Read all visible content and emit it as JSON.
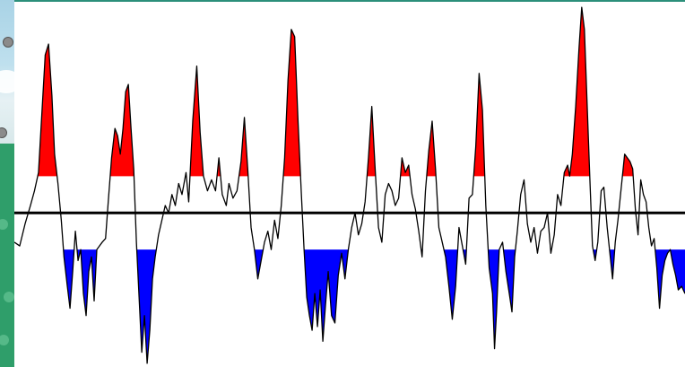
{
  "chart_data": {
    "type": "area",
    "title": "",
    "xlabel": "",
    "ylabel": "",
    "baseline": 0,
    "upper_threshold": 1.0,
    "lower_threshold": -1.0,
    "ylim": [
      -4.2,
      5.8
    ],
    "xlim": [
      0,
      100
    ],
    "grid": false,
    "legend": "none",
    "colors": {
      "line": "#000000",
      "above_threshold": "#ff0000",
      "below_threshold": "#0000ff",
      "zero_line": "#000000"
    },
    "series": [
      {
        "points": [
          [
            0,
            -0.8
          ],
          [
            0.8,
            -0.9
          ],
          [
            1.6,
            -0.3
          ],
          [
            2.4,
            0.2
          ],
          [
            3.0,
            0.6
          ],
          [
            3.6,
            1.1
          ],
          [
            4.1,
            2.7
          ],
          [
            4.6,
            4.3
          ],
          [
            5.1,
            4.6
          ],
          [
            5.6,
            3.2
          ],
          [
            6.0,
            1.6
          ],
          [
            6.5,
            0.8
          ],
          [
            7.0,
            -0.2
          ],
          [
            7.4,
            -1.2
          ],
          [
            7.9,
            -2.0
          ],
          [
            8.3,
            -2.6
          ],
          [
            8.7,
            -1.6
          ],
          [
            9.1,
            -0.5
          ],
          [
            9.5,
            -1.3
          ],
          [
            9.9,
            -1.0
          ],
          [
            10.3,
            -2.2
          ],
          [
            10.7,
            -2.8
          ],
          [
            11.1,
            -1.6
          ],
          [
            11.5,
            -1.2
          ],
          [
            11.9,
            -2.4
          ],
          [
            12.3,
            -1.0
          ],
          [
            12.7,
            -0.9
          ],
          [
            13.1,
            -0.8
          ],
          [
            13.6,
            -0.7
          ],
          [
            14.0,
            0.3
          ],
          [
            14.5,
            1.5
          ],
          [
            15.0,
            2.3
          ],
          [
            15.4,
            2.1
          ],
          [
            15.8,
            1.6
          ],
          [
            16.2,
            2.3
          ],
          [
            16.6,
            3.3
          ],
          [
            17.0,
            3.5
          ],
          [
            17.4,
            2.3
          ],
          [
            17.8,
            1.2
          ],
          [
            18.2,
            -0.8
          ],
          [
            18.6,
            -2.3
          ],
          [
            19.0,
            -3.8
          ],
          [
            19.4,
            -2.8
          ],
          [
            19.8,
            -4.1
          ],
          [
            20.2,
            -3.2
          ],
          [
            20.6,
            -1.8
          ],
          [
            21.0,
            -1.2
          ],
          [
            21.5,
            -0.6
          ],
          [
            22.0,
            -0.2
          ],
          [
            22.5,
            0.2
          ],
          [
            23.0,
            0.0
          ],
          [
            23.5,
            0.5
          ],
          [
            24.0,
            0.2
          ],
          [
            24.5,
            0.8
          ],
          [
            25.0,
            0.5
          ],
          [
            25.6,
            1.1
          ],
          [
            26.0,
            0.3
          ],
          [
            26.6,
            2.5
          ],
          [
            27.2,
            4.0
          ],
          [
            27.7,
            2.2
          ],
          [
            28.2,
            1.0
          ],
          [
            28.8,
            0.6
          ],
          [
            29.4,
            0.9
          ],
          [
            30.0,
            0.6
          ],
          [
            30.5,
            1.5
          ],
          [
            31.0,
            0.5
          ],
          [
            31.6,
            0.2
          ],
          [
            32.0,
            0.8
          ],
          [
            32.6,
            0.4
          ],
          [
            33.2,
            0.6
          ],
          [
            33.8,
            1.4
          ],
          [
            34.3,
            2.6
          ],
          [
            34.8,
            1.2
          ],
          [
            35.3,
            -0.4
          ],
          [
            35.8,
            -1.0
          ],
          [
            36.3,
            -1.8
          ],
          [
            36.8,
            -1.3
          ],
          [
            37.3,
            -0.8
          ],
          [
            37.8,
            -0.5
          ],
          [
            38.3,
            -1.0
          ],
          [
            38.8,
            -0.2
          ],
          [
            39.3,
            -0.7
          ],
          [
            39.8,
            0.2
          ],
          [
            40.3,
            1.5
          ],
          [
            40.8,
            3.6
          ],
          [
            41.3,
            5.0
          ],
          [
            41.8,
            4.8
          ],
          [
            42.3,
            2.5
          ],
          [
            42.8,
            0.5
          ],
          [
            43.2,
            -1.0
          ],
          [
            43.6,
            -2.3
          ],
          [
            44.0,
            -2.8
          ],
          [
            44.4,
            -3.2
          ],
          [
            44.8,
            -2.2
          ],
          [
            45.2,
            -3.1
          ],
          [
            45.6,
            -2.1
          ],
          [
            46.0,
            -3.5
          ],
          [
            46.4,
            -2.5
          ],
          [
            46.8,
            -1.6
          ],
          [
            47.3,
            -2.8
          ],
          [
            47.8,
            -3.0
          ],
          [
            48.3,
            -1.7
          ],
          [
            48.8,
            -1.1
          ],
          [
            49.3,
            -1.8
          ],
          [
            49.8,
            -1.0
          ],
          [
            50.3,
            -0.4
          ],
          [
            50.8,
            0.0
          ],
          [
            51.3,
            -0.6
          ],
          [
            51.8,
            -0.3
          ],
          [
            52.3,
            0.3
          ],
          [
            52.8,
            1.5
          ],
          [
            53.3,
            2.9
          ],
          [
            53.8,
            1.2
          ],
          [
            54.3,
            -0.4
          ],
          [
            54.8,
            -0.8
          ],
          [
            55.3,
            0.5
          ],
          [
            55.8,
            0.8
          ],
          [
            56.3,
            0.6
          ],
          [
            56.8,
            0.2
          ],
          [
            57.3,
            0.4
          ],
          [
            57.8,
            1.5
          ],
          [
            58.3,
            1.1
          ],
          [
            58.8,
            1.3
          ],
          [
            59.3,
            0.5
          ],
          [
            59.8,
            0.1
          ],
          [
            60.3,
            -0.5
          ],
          [
            60.8,
            -1.2
          ],
          [
            61.3,
            0.6
          ],
          [
            61.8,
            1.7
          ],
          [
            62.3,
            2.5
          ],
          [
            62.8,
            1.2
          ],
          [
            63.3,
            -0.4
          ],
          [
            63.8,
            -0.8
          ],
          [
            64.3,
            -1.2
          ],
          [
            64.8,
            -2.0
          ],
          [
            65.3,
            -2.9
          ],
          [
            65.8,
            -2.0
          ],
          [
            66.3,
            -0.4
          ],
          [
            66.8,
            -0.9
          ],
          [
            67.3,
            -1.4
          ],
          [
            67.8,
            0.4
          ],
          [
            68.3,
            0.5
          ],
          [
            68.8,
            1.8
          ],
          [
            69.3,
            3.8
          ],
          [
            69.8,
            2.8
          ],
          [
            70.3,
            0.2
          ],
          [
            70.8,
            -1.5
          ],
          [
            71.3,
            -2.2
          ],
          [
            71.6,
            -3.7
          ],
          [
            71.9,
            -2.7
          ],
          [
            72.3,
            -1.0
          ],
          [
            72.8,
            -0.8
          ],
          [
            73.3,
            -1.6
          ],
          [
            73.8,
            -2.2
          ],
          [
            74.2,
            -2.7
          ],
          [
            74.6,
            -1.2
          ],
          [
            75.0,
            -0.5
          ],
          [
            75.5,
            0.5
          ],
          [
            76.0,
            0.9
          ],
          [
            76.5,
            -0.3
          ],
          [
            77.0,
            -0.8
          ],
          [
            77.5,
            -0.4
          ],
          [
            78.0,
            -1.1
          ],
          [
            78.5,
            -0.5
          ],
          [
            79.0,
            -0.4
          ],
          [
            79.5,
            0.0
          ],
          [
            80.0,
            -1.1
          ],
          [
            80.5,
            -0.6
          ],
          [
            81.0,
            0.5
          ],
          [
            81.5,
            0.2
          ],
          [
            82.0,
            1.1
          ],
          [
            82.5,
            1.3
          ],
          [
            82.8,
            1.0
          ],
          [
            83.2,
            1.6
          ],
          [
            83.7,
            2.9
          ],
          [
            84.2,
            4.5
          ],
          [
            84.6,
            5.6
          ],
          [
            85.0,
            5.0
          ],
          [
            85.4,
            3.0
          ],
          [
            85.8,
            1.0
          ],
          [
            86.2,
            -0.9
          ],
          [
            86.6,
            -1.3
          ],
          [
            87.0,
            -0.8
          ],
          [
            87.5,
            0.6
          ],
          [
            87.9,
            0.7
          ],
          [
            88.4,
            -0.4
          ],
          [
            88.8,
            -1.1
          ],
          [
            89.2,
            -1.8
          ],
          [
            89.6,
            -0.8
          ],
          [
            90.0,
            -0.2
          ],
          [
            90.5,
            0.7
          ],
          [
            91.0,
            1.6
          ],
          [
            91.4,
            1.5
          ],
          [
            91.8,
            1.4
          ],
          [
            92.2,
            1.2
          ],
          [
            92.6,
            0.1
          ],
          [
            93.0,
            -0.6
          ],
          [
            93.4,
            0.9
          ],
          [
            93.8,
            0.5
          ],
          [
            94.2,
            0.3
          ],
          [
            94.6,
            -0.4
          ],
          [
            95.0,
            -0.9
          ],
          [
            95.4,
            -0.7
          ],
          [
            95.8,
            -1.5
          ],
          [
            96.2,
            -2.6
          ],
          [
            96.6,
            -1.7
          ],
          [
            97.0,
            -1.3
          ],
          [
            97.4,
            -1.1
          ],
          [
            97.8,
            -1.0
          ],
          [
            98.2,
            -1.4
          ],
          [
            98.6,
            -1.7
          ],
          [
            99.0,
            -2.1
          ],
          [
            99.5,
            -2.0
          ],
          [
            100,
            -2.2
          ]
        ]
      }
    ]
  }
}
